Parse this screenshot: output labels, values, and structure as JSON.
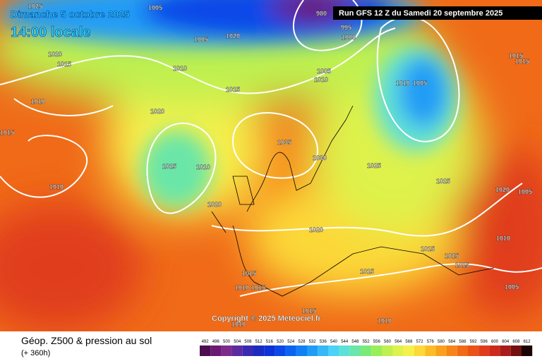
{
  "header": {
    "date": "Dimanche 5 octobre 2025",
    "time": "14:00 locale",
    "run": "Run GFS 12 Z du Samedi 20 septembre 2025"
  },
  "copyright": "Copyright © 2025 Meteociel.fr",
  "footer": {
    "title": "Géop. Z500 & pression au sol",
    "lead": "(+ 360h)"
  },
  "scale": [
    {
      "value": 492,
      "color": "#4b0f4f"
    },
    {
      "value": 496,
      "color": "#6a1a72"
    },
    {
      "value": 500,
      "color": "#7d2a8c"
    },
    {
      "value": 504,
      "color": "#5b2ca0"
    },
    {
      "value": 508,
      "color": "#3a2ab0"
    },
    {
      "value": 512,
      "color": "#1d2ac0"
    },
    {
      "value": 516,
      "color": "#0c32d8"
    },
    {
      "value": 520,
      "color": "#0a48e8"
    },
    {
      "value": 524,
      "color": "#0a64f0"
    },
    {
      "value": 528,
      "color": "#1080f4"
    },
    {
      "value": 532,
      "color": "#209cf6"
    },
    {
      "value": 536,
      "color": "#34b8f8"
    },
    {
      "value": 540,
      "color": "#4cd2f6"
    },
    {
      "value": 544,
      "color": "#5ee0d8"
    },
    {
      "value": 548,
      "color": "#6ae6a8"
    },
    {
      "value": 552,
      "color": "#7aea78"
    },
    {
      "value": 556,
      "color": "#9aee58"
    },
    {
      "value": 560,
      "color": "#bef050"
    },
    {
      "value": 564,
      "color": "#def24c"
    },
    {
      "value": 568,
      "color": "#f6f04c"
    },
    {
      "value": 572,
      "color": "#fcd838"
    },
    {
      "value": 576,
      "color": "#fcbc28"
    },
    {
      "value": 580,
      "color": "#faa01c"
    },
    {
      "value": 584,
      "color": "#f68418"
    },
    {
      "value": 588,
      "color": "#f06a18"
    },
    {
      "value": 592,
      "color": "#ea5218"
    },
    {
      "value": 596,
      "color": "#e03c1c"
    },
    {
      "value": 600,
      "color": "#cc2a1c"
    },
    {
      "value": 604,
      "color": "#a81c1c"
    },
    {
      "value": 608,
      "color": "#701010"
    },
    {
      "value": 612,
      "color": "#1c0404"
    }
  ],
  "isobars": [
    1025,
    1005,
    980,
    995,
    1000,
    1020,
    1005,
    1020,
    1015,
    1010,
    1005,
    1010,
    1015,
    1010,
    1020,
    1015,
    1035,
    1030,
    1015,
    1010,
    1025,
    1025,
    1020,
    1005,
    1010,
    1020,
    1020,
    1010,
    1015,
    1015,
    1015,
    1015,
    1015,
    1010,
    1015,
    1005,
    1015,
    1010,
    1010,
    1015,
    1015,
    1010,
    1005
  ]
}
